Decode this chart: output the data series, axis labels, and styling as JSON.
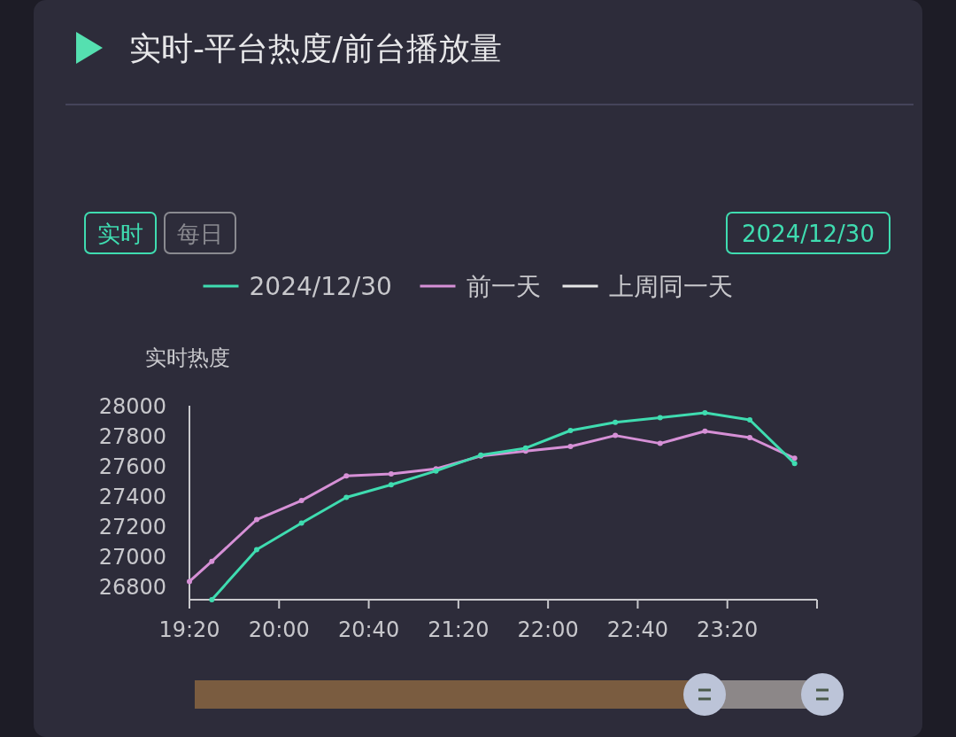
{
  "chart_data": {
    "type": "line",
    "title": "实时-平台热度/前台播放量",
    "ylabel": "实时热度",
    "annotations": [
      "实时",
      "每日",
      "2024/12/30"
    ],
    "legend": "top",
    "marker": "circle",
    "xlim": [
      19.3333,
      24
    ],
    "xticks": [
      {
        "value": 19.3333,
        "label": "19:20"
      },
      {
        "value": 20,
        "label": "20:00"
      },
      {
        "value": 20.6667,
        "label": "20:40"
      },
      {
        "value": 21.3333,
        "label": "21:20"
      },
      {
        "value": 22,
        "label": "22:00"
      },
      {
        "value": 22.6667,
        "label": "22:40"
      },
      {
        "value": 23.3333,
        "label": "23:20"
      },
      {
        "value": 24,
        "label": null
      }
    ],
    "ylim": [
      26710,
      28000
    ],
    "yticks": [
      26800,
      27000,
      27200,
      27400,
      27600,
      27800,
      28000
    ],
    "series": [
      {
        "name": "2024/12/30",
        "color": "#3fdcb0",
        "x": [
          19.5,
          19.8333,
          20.1667,
          20.5,
          20.8333,
          21.1667,
          21.5,
          21.8333,
          22.1667,
          22.5,
          22.8333,
          23.1667,
          23.5,
          23.8333
        ],
        "values": [
          26710,
          27043,
          27220,
          27390,
          27474,
          27566,
          27671,
          27718,
          27835,
          27890,
          27920,
          27953,
          27906,
          27616
        ]
      },
      {
        "name": "前一天",
        "color": "#d690d6",
        "x": [
          19.3333,
          19.5,
          19.8333,
          20.1667,
          20.5,
          20.8333,
          21.1667,
          21.5,
          21.8333,
          22.1667,
          22.5,
          22.8333,
          23.1667,
          23.5,
          23.8333
        ],
        "values": [
          26831,
          26965,
          27243,
          27369,
          27533,
          27547,
          27580,
          27665,
          27698,
          27729,
          27802,
          27749,
          27831,
          27788,
          27651
        ]
      },
      {
        "name": "上周同一天",
        "color": "#e6e6e6"
      }
    ]
  }
}
